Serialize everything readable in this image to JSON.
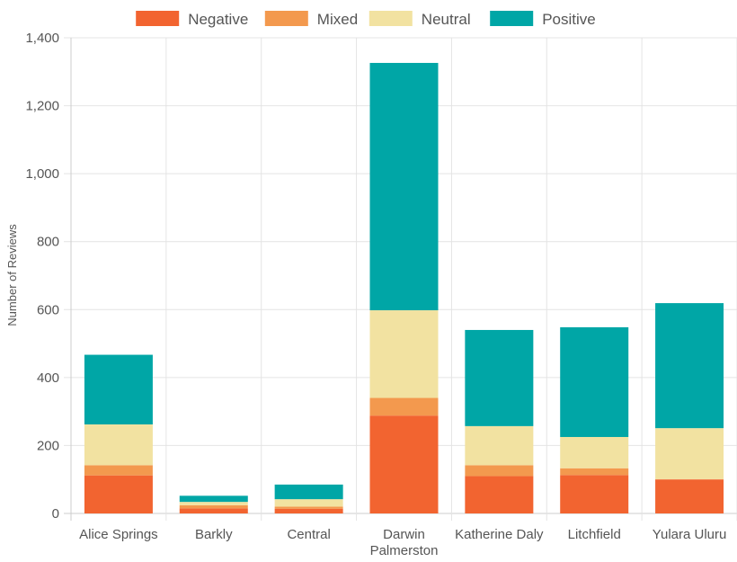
{
  "chart_data": {
    "type": "bar",
    "stacked": true,
    "title": "",
    "xlabel": "",
    "ylabel": "Number of Reviews",
    "ylim": [
      0,
      1400
    ],
    "yticks": [
      0,
      200,
      400,
      600,
      800,
      1000,
      1200,
      1400
    ],
    "ytick_labels": [
      "0",
      "200",
      "400",
      "600",
      "800",
      "1,000",
      "1,200",
      "1,400"
    ],
    "categories": [
      "Alice Springs",
      "Barkly",
      "Central",
      "Darwin Palmerston",
      "Katherine Daly",
      "Litchfield",
      "Yulara Uluru"
    ],
    "category_lines": [
      [
        "Alice Springs"
      ],
      [
        "Barkly"
      ],
      [
        "Central"
      ],
      [
        "Darwin",
        "Palmerston"
      ],
      [
        "Katherine Daly"
      ],
      [
        "Litchfield"
      ],
      [
        "Yulara Uluru"
      ]
    ],
    "grid": true,
    "legend_position": "top",
    "series": [
      {
        "name": "Negative",
        "color": "#f26430",
        "values": [
          112,
          15,
          14,
          288,
          110,
          113,
          100
        ]
      },
      {
        "name": "Mixed",
        "color": "#f3994e",
        "values": [
          30,
          9,
          6,
          52,
          32,
          20,
          1
        ]
      },
      {
        "name": "Neutral",
        "color": "#f2e2a1",
        "values": [
          120,
          10,
          22,
          258,
          115,
          92,
          150
        ]
      },
      {
        "name": "Positive",
        "color": "#00a6a6",
        "values": [
          205,
          18,
          43,
          728,
          283,
          323,
          368
        ]
      }
    ]
  }
}
